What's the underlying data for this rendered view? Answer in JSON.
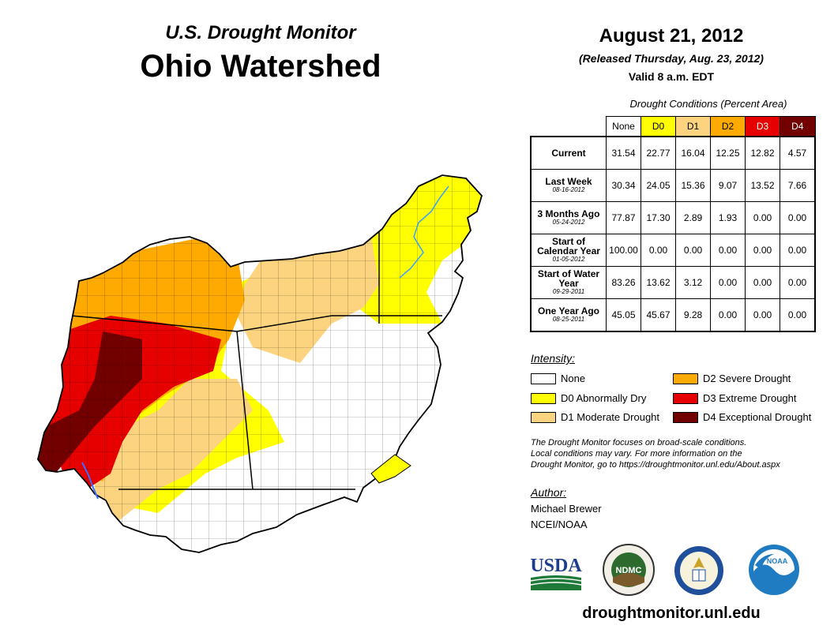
{
  "header": {
    "monitor_title": "U.S. Drought Monitor",
    "region_title": "Ohio Watershed",
    "date": "August 21, 2012",
    "released": "(Released Thursday, Aug. 23, 2012)",
    "valid": "Valid 8 a.m. EDT"
  },
  "table": {
    "caption": "Drought Conditions (Percent Area)",
    "columns": [
      {
        "label": "None",
        "color": "#ffffff"
      },
      {
        "label": "D0",
        "color": "#ffff00"
      },
      {
        "label": "D1",
        "color": "#fcd37f"
      },
      {
        "label": "D2",
        "color": "#ffaa00"
      },
      {
        "label": "D3",
        "color": "#e60000"
      },
      {
        "label": "D4",
        "color": "#730000"
      }
    ],
    "rows": [
      {
        "label": "Current",
        "date": "",
        "values": [
          "31.54",
          "22.77",
          "16.04",
          "12.25",
          "12.82",
          "4.57"
        ]
      },
      {
        "label": "Last Week",
        "date": "08-16-2012",
        "values": [
          "30.34",
          "24.05",
          "15.36",
          "9.07",
          "13.52",
          "7.66"
        ]
      },
      {
        "label": "3 Months Ago",
        "date": "05-24-2012",
        "values": [
          "77.87",
          "17.30",
          "2.89",
          "1.93",
          "0.00",
          "0.00"
        ]
      },
      {
        "label": "Start of Calendar Year",
        "date": "01-05-2012",
        "values": [
          "100.00",
          "0.00",
          "0.00",
          "0.00",
          "0.00",
          "0.00"
        ]
      },
      {
        "label": "Start of Water Year",
        "date": "09-29-2011",
        "values": [
          "83.26",
          "13.62",
          "3.12",
          "0.00",
          "0.00",
          "0.00"
        ]
      },
      {
        "label": "One Year Ago",
        "date": "08-25-2011",
        "values": [
          "45.05",
          "45.67",
          "9.28",
          "0.00",
          "0.00",
          "0.00"
        ]
      }
    ]
  },
  "legend": {
    "heading": "Intensity:",
    "items": [
      {
        "label": "None",
        "color": "#ffffff"
      },
      {
        "label": "D0 Abnormally Dry",
        "color": "#ffff00"
      },
      {
        "label": "D1 Moderate Drought",
        "color": "#fcd37f"
      },
      {
        "label": "D2 Severe Drought",
        "color": "#ffaa00"
      },
      {
        "label": "D3 Extreme Drought",
        "color": "#e60000"
      },
      {
        "label": "D4 Exceptional Drought",
        "color": "#730000"
      }
    ]
  },
  "note": {
    "line1": "The Drought Monitor focuses on broad-scale conditions.",
    "line2": "Local conditions may vary. For more information on the",
    "line3": "Drought Monitor, go to https://droughtmonitor.unl.edu/About.aspx"
  },
  "author": {
    "heading": "Author:",
    "name": "Michael Brewer",
    "org": "NCEI/NOAA"
  },
  "logos": {
    "usda": "USDA",
    "ndmc": "NDMC",
    "noaa": "NOAA"
  },
  "footer": {
    "website": "droughtmonitor.unl.edu"
  }
}
